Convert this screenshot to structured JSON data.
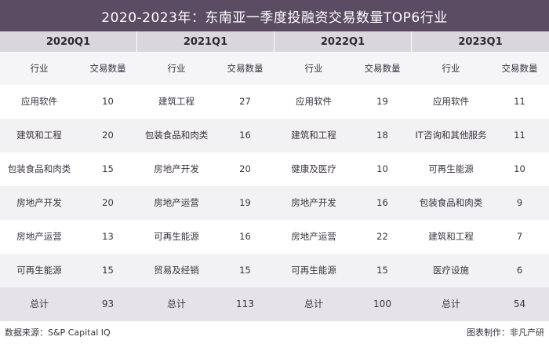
{
  "title": "2020-2023年：东南亚一季度投融资交易数量TOP6行业",
  "years": [
    "2020Q1",
    "2021Q1",
    "2022Q1",
    "2023Q1"
  ],
  "headers": {
    "industry": "行业",
    "count": "交易数量"
  },
  "rows": [
    [
      {
        "ind": "应用软件",
        "n": "10"
      },
      {
        "ind": "建筑工程",
        "n": "27"
      },
      {
        "ind": "应用软件",
        "n": "19"
      },
      {
        "ind": "应用软件",
        "n": "11"
      }
    ],
    [
      {
        "ind": "建筑和工程",
        "n": "20"
      },
      {
        "ind": "包装食品和肉类",
        "n": "16"
      },
      {
        "ind": "建筑和工程",
        "n": "18"
      },
      {
        "ind": "IT咨询和其他服务",
        "n": "11"
      }
    ],
    [
      {
        "ind": "包装食品和肉类",
        "n": "15"
      },
      {
        "ind": "房地产开发",
        "n": "20"
      },
      {
        "ind": "健康及医疗",
        "n": "10"
      },
      {
        "ind": "可再生能源",
        "n": "10"
      }
    ],
    [
      {
        "ind": "房地产开发",
        "n": "20"
      },
      {
        "ind": "房地产运营",
        "n": "19"
      },
      {
        "ind": "房地产开发",
        "n": "16"
      },
      {
        "ind": "包装食品和肉类",
        "n": "9"
      }
    ],
    [
      {
        "ind": "房地产运营",
        "n": "13"
      },
      {
        "ind": "可再生能源",
        "n": "16"
      },
      {
        "ind": "房地产运营",
        "n": "22"
      },
      {
        "ind": "建筑和工程",
        "n": "7"
      }
    ],
    [
      {
        "ind": "可再生能源",
        "n": "15"
      },
      {
        "ind": "贸易及经销",
        "n": "15"
      },
      {
        "ind": "可再生能源",
        "n": "15"
      },
      {
        "ind": "医疗设施",
        "n": "6"
      }
    ]
  ],
  "totals": {
    "label": "总计",
    "values": [
      "93",
      "113",
      "100",
      "54"
    ]
  },
  "footer": {
    "source": "数据来源：S&P Capital IQ",
    "credit": "图表制作：非凡产研"
  }
}
